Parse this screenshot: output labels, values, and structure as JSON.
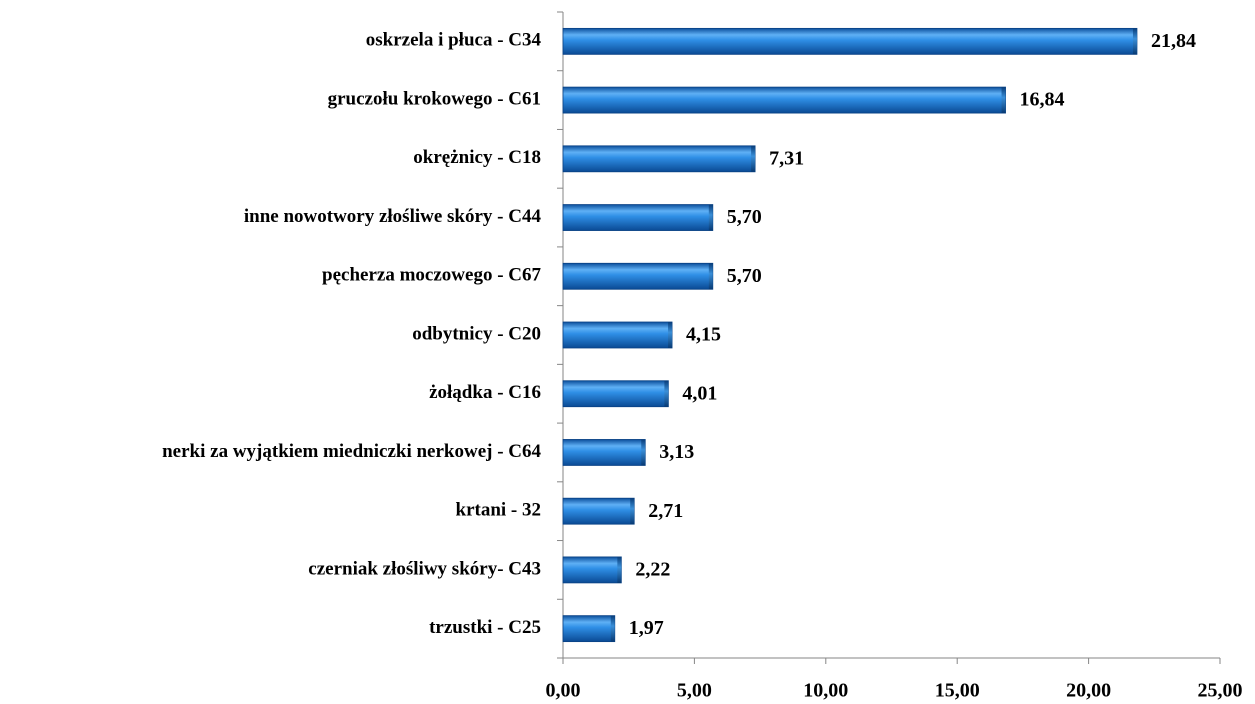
{
  "chart_data": {
    "type": "bar",
    "orientation": "horizontal",
    "categories": [
      "oskrzela i płuca - C34",
      "gruczołu krokowego - C61",
      "okrężnicy - C18",
      "inne nowotwory złośliwe skóry - C44",
      "pęcherza moczowego - C67",
      "odbytnicy - C20",
      "żołądka - C16",
      "nerki za wyjątkiem miedniczki nerkowej - C64",
      "krtani - 32",
      "czerniak złośliwy skóry- C43",
      "trzustki - C25"
    ],
    "values": [
      21.84,
      16.84,
      7.31,
      5.7,
      5.7,
      4.15,
      4.01,
      3.13,
      2.71,
      2.22,
      1.97
    ],
    "value_labels": [
      "21,84",
      "16,84",
      "7,31",
      "5,70",
      "5,70",
      "4,15",
      "4,01",
      "3,13",
      "2,71",
      "2,22",
      "1,97"
    ],
    "color": "#1f7fd6",
    "xlim": [
      0,
      25
    ],
    "xticks": [
      {
        "value": 0,
        "label": "0,00"
      },
      {
        "value": 5,
        "label": "5,00"
      },
      {
        "value": 10,
        "label": "10,00"
      },
      {
        "value": 15,
        "label": "15,00"
      },
      {
        "value": 20,
        "label": "20,00"
      },
      {
        "value": 25,
        "label": "25,00"
      }
    ],
    "grid": false
  }
}
